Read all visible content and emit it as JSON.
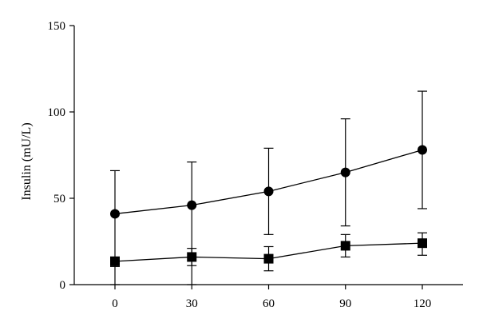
{
  "chart_data": {
    "type": "line",
    "title": "",
    "xlabel": "",
    "ylabel": "Insulin (mU/L)",
    "x": [
      0,
      30,
      60,
      90,
      120
    ],
    "xticks": [
      "0",
      "30",
      "60",
      "90",
      "120"
    ],
    "yticks": [
      "0",
      "50",
      "100",
      "150"
    ],
    "ytick_values": [
      0,
      50,
      100,
      150
    ],
    "ylim": [
      0,
      150
    ],
    "grid": false,
    "legend": "none",
    "series": [
      {
        "marker": "circle",
        "values": [
          41,
          46,
          54,
          65,
          78
        ],
        "error_upper": [
          66,
          71,
          79,
          96,
          112
        ],
        "error_lower": [
          0,
          0,
          29,
          34,
          44
        ]
      },
      {
        "marker": "square",
        "values": [
          13.5,
          16,
          15,
          22.5,
          24
        ],
        "error_upper": [
          16,
          21,
          22,
          29,
          30
        ],
        "error_lower": [
          10.5,
          11,
          8,
          16,
          17
        ]
      }
    ],
    "colors": {
      "marks": "#000000",
      "background": "#ffffff"
    }
  }
}
